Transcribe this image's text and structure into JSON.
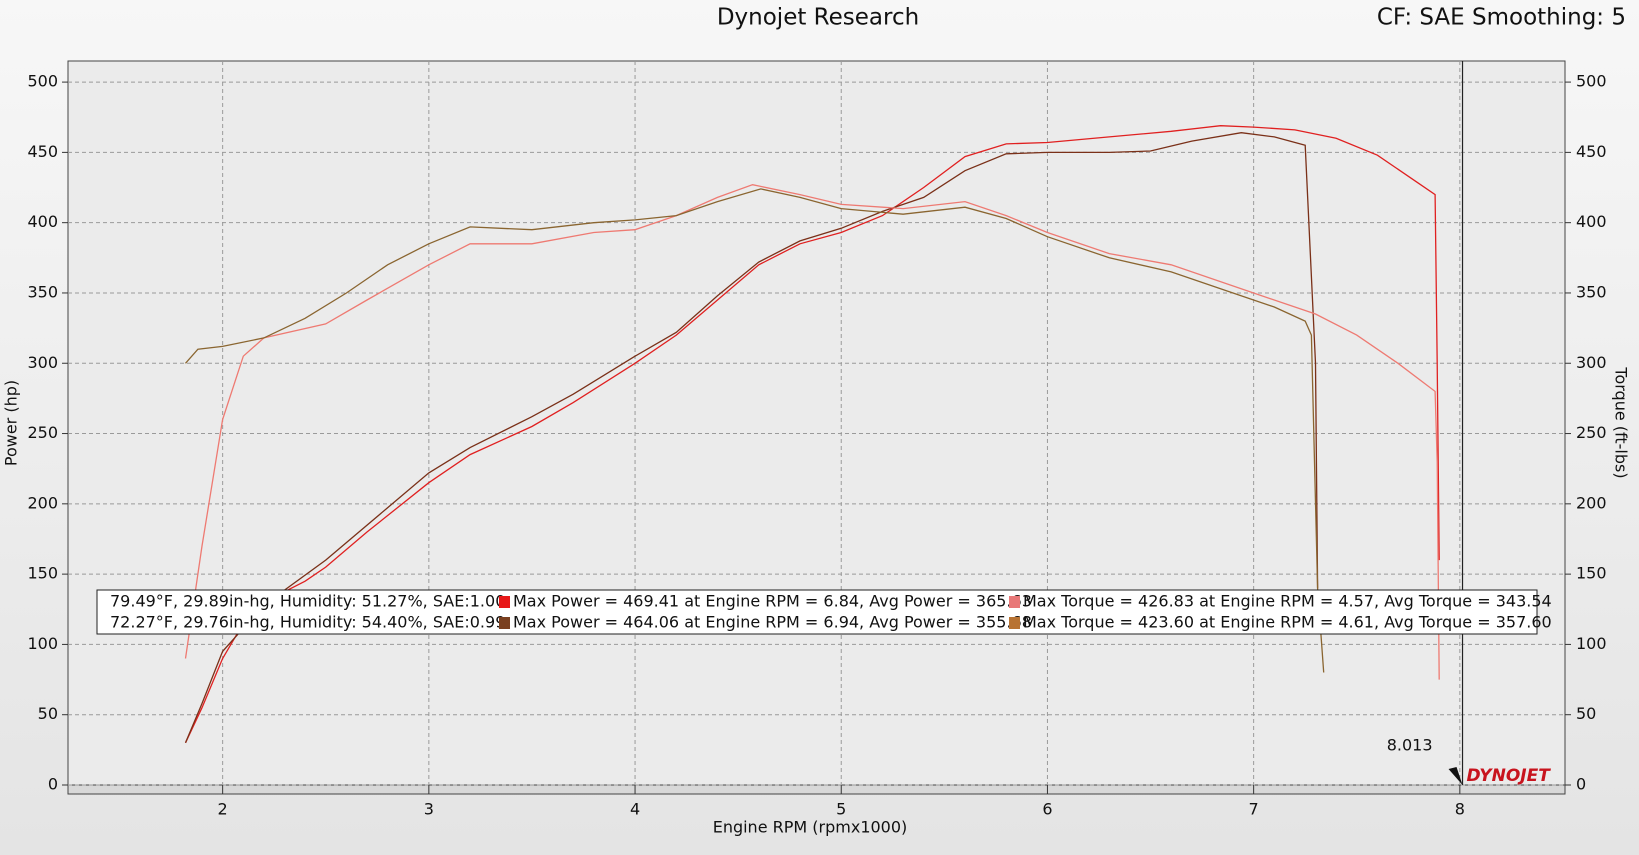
{
  "chart_data": {
    "type": "line",
    "title": "Dynojet Research",
    "subtitle": "CF: SAE Smoothing: 5",
    "x_label": "Engine RPM (rpmx1000)",
    "y_label": "Power (hp)",
    "y2_label": "Torque (ft-lbs)",
    "logo": "DYNOJET",
    "cursor": 8.013,
    "xlim": [
      1.25,
      8.51
    ],
    "xticks": [
      2,
      3,
      4,
      5,
      6,
      7,
      8
    ],
    "ylim": [
      0,
      515
    ],
    "yticks": [
      0,
      50,
      100,
      150,
      200,
      250,
      300,
      350,
      400,
      450,
      500
    ],
    "y2lim": [
      0,
      515
    ],
    "y2ticks": [
      0,
      50,
      100,
      150,
      200,
      250,
      300,
      350,
      400,
      450,
      500
    ],
    "grid": true,
    "run_info": [
      "79.49°F, 29.89in-hg, Humidity: 51.27%, SAE:1.00",
      "72.27°F, 29.76in-hg, Humidity: 54.40%, SAE:0.99"
    ],
    "series": [
      {
        "name": "Max Power = 469.41 at Engine RPM = 6.84,  Avg Power = 365.63",
        "color": "#e02020",
        "swatch": "#e81818",
        "x": [
          1.82,
          1.9,
          2.0,
          2.1,
          2.2,
          2.4,
          2.5,
          2.7,
          3.0,
          3.2,
          3.5,
          3.7,
          4.0,
          4.2,
          4.4,
          4.6,
          4.8,
          5.0,
          5.2,
          5.4,
          5.6,
          5.8,
          6.0,
          6.3,
          6.6,
          6.84,
          7.0,
          7.2,
          7.4,
          7.6,
          7.8,
          7.88,
          7.89,
          7.9
        ],
        "values": [
          30,
          55,
          90,
          115,
          130,
          145,
          155,
          180,
          215,
          235,
          255,
          272,
          300,
          320,
          345,
          370,
          385,
          393,
          405,
          425,
          447,
          456,
          457,
          461,
          465,
          469,
          468,
          466,
          460,
          448,
          428,
          420,
          300,
          160
        ]
      },
      {
        "name": "Max Power = 464.06 at Engine RPM = 6.94,  Avg Power = 355.68",
        "color": "#7a3018",
        "swatch": "#7a4020",
        "x": [
          1.82,
          1.9,
          2.0,
          2.2,
          2.5,
          3.0,
          3.2,
          3.5,
          3.7,
          4.0,
          4.2,
          4.4,
          4.6,
          4.8,
          5.0,
          5.2,
          5.4,
          5.6,
          5.8,
          6.0,
          6.3,
          6.5,
          6.7,
          6.94,
          7.1,
          7.25,
          7.3,
          7.31
        ],
        "values": [
          30,
          58,
          95,
          128,
          160,
          222,
          240,
          262,
          278,
          305,
          322,
          348,
          372,
          387,
          396,
          408,
          418,
          437,
          449,
          450,
          450,
          451,
          458,
          464,
          461,
          455,
          300,
          140
        ]
      },
      {
        "name": "Max Torque = 426.83 at Engine RPM = 4.57,  Avg Torque = 343.54",
        "color": "#ee7a72",
        "swatch": "#e87878",
        "axis": "y2",
        "x": [
          1.82,
          1.9,
          2.0,
          2.1,
          2.2,
          2.5,
          2.7,
          3.0,
          3.2,
          3.5,
          3.8,
          4.0,
          4.2,
          4.4,
          4.57,
          4.8,
          5.0,
          5.3,
          5.6,
          5.8,
          6.0,
          6.3,
          6.6,
          7.0,
          7.3,
          7.5,
          7.7,
          7.88,
          7.89,
          7.9
        ],
        "values": [
          90,
          170,
          260,
          305,
          318,
          328,
          345,
          370,
          385,
          385,
          393,
          395,
          405,
          418,
          427,
          420,
          413,
          410,
          415,
          405,
          393,
          378,
          370,
          350,
          335,
          320,
          300,
          280,
          230,
          75
        ]
      },
      {
        "name": "Max Torque = 423.60 at Engine RPM = 4.61,  Avg Torque = 357.60",
        "color": "#8a6530",
        "swatch": "#b87333",
        "axis": "y2",
        "x": [
          1.82,
          1.88,
          2.0,
          2.2,
          2.4,
          2.6,
          2.8,
          3.0,
          3.2,
          3.5,
          3.8,
          4.0,
          4.2,
          4.4,
          4.61,
          4.8,
          5.0,
          5.3,
          5.6,
          5.8,
          6.0,
          6.3,
          6.6,
          6.9,
          7.1,
          7.25,
          7.28,
          7.31,
          7.34
        ],
        "values": [
          300,
          310,
          312,
          318,
          332,
          350,
          370,
          385,
          397,
          395,
          400,
          402,
          405,
          415,
          424,
          418,
          410,
          406,
          411,
          403,
          390,
          375,
          365,
          350,
          340,
          330,
          320,
          140,
          80
        ]
      }
    ]
  }
}
